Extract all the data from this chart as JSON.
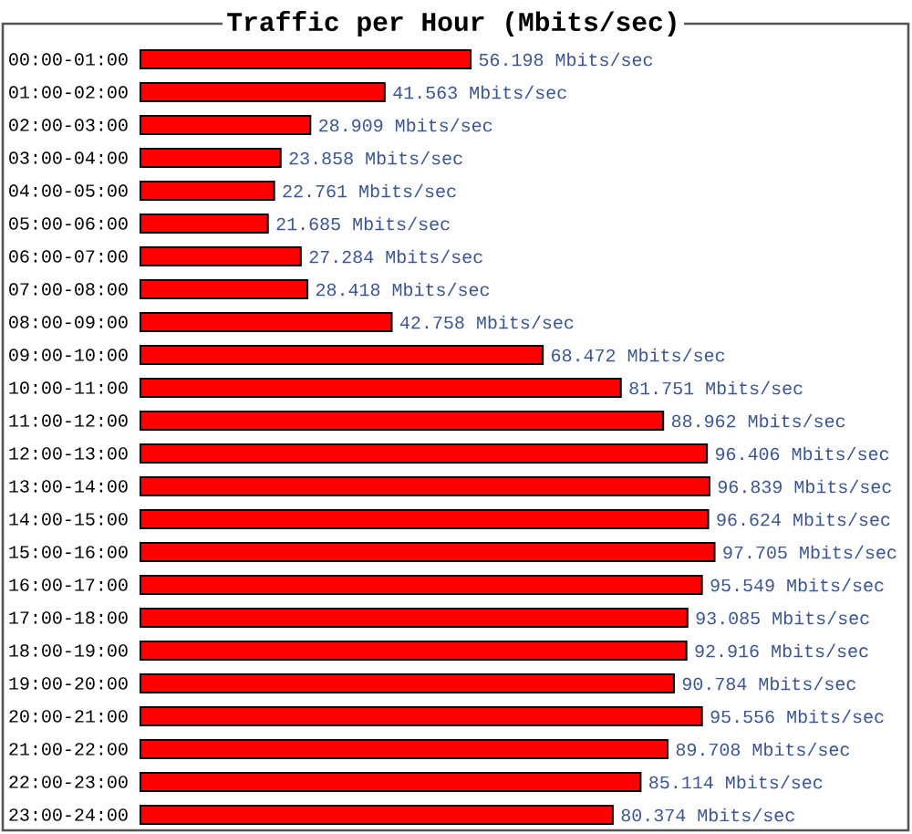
{
  "chart_data": {
    "type": "bar",
    "orientation": "horizontal",
    "title": "Traffic per Hour (Mbits/sec)",
    "categories": [
      "00:00-01:00",
      "01:00-02:00",
      "02:00-03:00",
      "03:00-04:00",
      "04:00-05:00",
      "05:00-06:00",
      "06:00-07:00",
      "07:00-08:00",
      "08:00-09:00",
      "09:00-10:00",
      "10:00-11:00",
      "11:00-12:00",
      "12:00-13:00",
      "13:00-14:00",
      "14:00-15:00",
      "15:00-16:00",
      "16:00-17:00",
      "17:00-18:00",
      "18:00-19:00",
      "19:00-20:00",
      "20:00-21:00",
      "21:00-22:00",
      "22:00-23:00",
      "23:00-24:00"
    ],
    "values": [
      56.198,
      41.563,
      28.909,
      23.858,
      22.761,
      21.685,
      27.284,
      28.418,
      42.758,
      68.472,
      81.751,
      88.962,
      96.406,
      96.839,
      96.624,
      97.705,
      95.549,
      93.085,
      92.916,
      90.784,
      95.556,
      89.708,
      85.114,
      80.374
    ],
    "value_labels": [
      "56.198 Mbits/sec",
      "41.563 Mbits/sec",
      "28.909 Mbits/sec",
      "23.858 Mbits/sec",
      "22.761 Mbits/sec",
      "21.685 Mbits/sec",
      "27.284 Mbits/sec",
      "28.418 Mbits/sec",
      "42.758 Mbits/sec",
      "68.472 Mbits/sec",
      "81.751 Mbits/sec",
      "88.962 Mbits/sec",
      "96.406 Mbits/sec",
      "96.839 Mbits/sec",
      "96.624 Mbits/sec",
      "97.705 Mbits/sec",
      "95.549 Mbits/sec",
      "93.085 Mbits/sec",
      "92.916 Mbits/sec",
      "90.784 Mbits/sec",
      "95.556 Mbits/sec",
      "89.708 Mbits/sec",
      "85.114 Mbits/sec",
      "80.374 Mbits/sec"
    ],
    "color": "#ff0000",
    "tick_labels": "y"
  }
}
